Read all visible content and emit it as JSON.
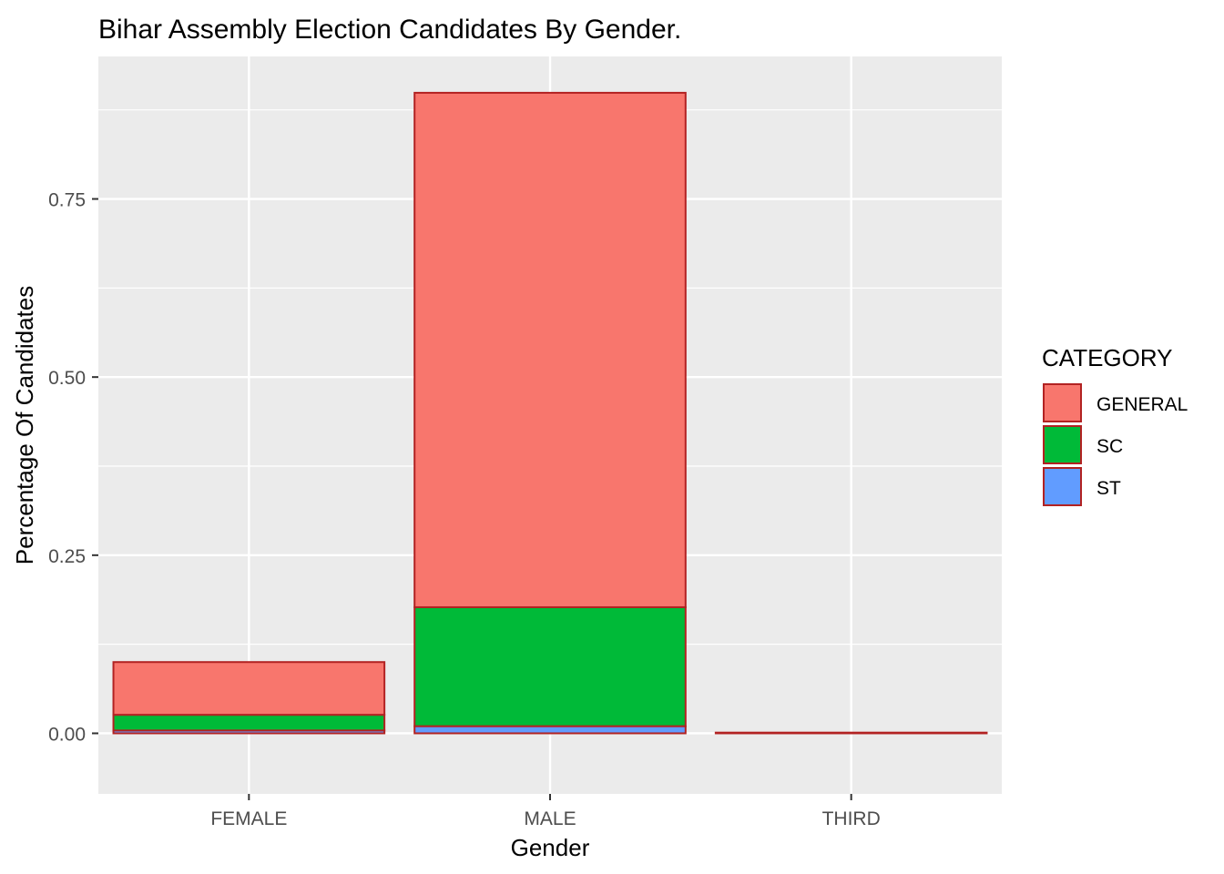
{
  "chart_data": {
    "type": "bar",
    "stacked": true,
    "title": "Bihar Assembly Election Candidates By Gender.",
    "xlabel": "Gender",
    "ylabel": "Percentage Of Candidates",
    "categories": [
      "FEMALE",
      "MALE",
      "THIRD"
    ],
    "series": [
      {
        "name": "GENERAL",
        "color": "#F8766D",
        "values": [
          0.074,
          0.722,
          0.001
        ]
      },
      {
        "name": "SC",
        "color": "#00BA38",
        "values": [
          0.022,
          0.167,
          0.0
        ]
      },
      {
        "name": "ST",
        "color": "#619CFF",
        "values": [
          0.004,
          0.01,
          0.0
        ]
      }
    ],
    "ylim": [
      -0.085,
      0.95
    ],
    "yticks": [
      0.0,
      0.25,
      0.5,
      0.75
    ],
    "ytick_labels": [
      "0.00",
      "0.25",
      "0.50",
      "0.75"
    ],
    "legend": {
      "title": "CATEGORY",
      "position": "right"
    },
    "grid": true,
    "bar_outline_color": "#B22222",
    "panel_background": "#EBEBEB"
  }
}
